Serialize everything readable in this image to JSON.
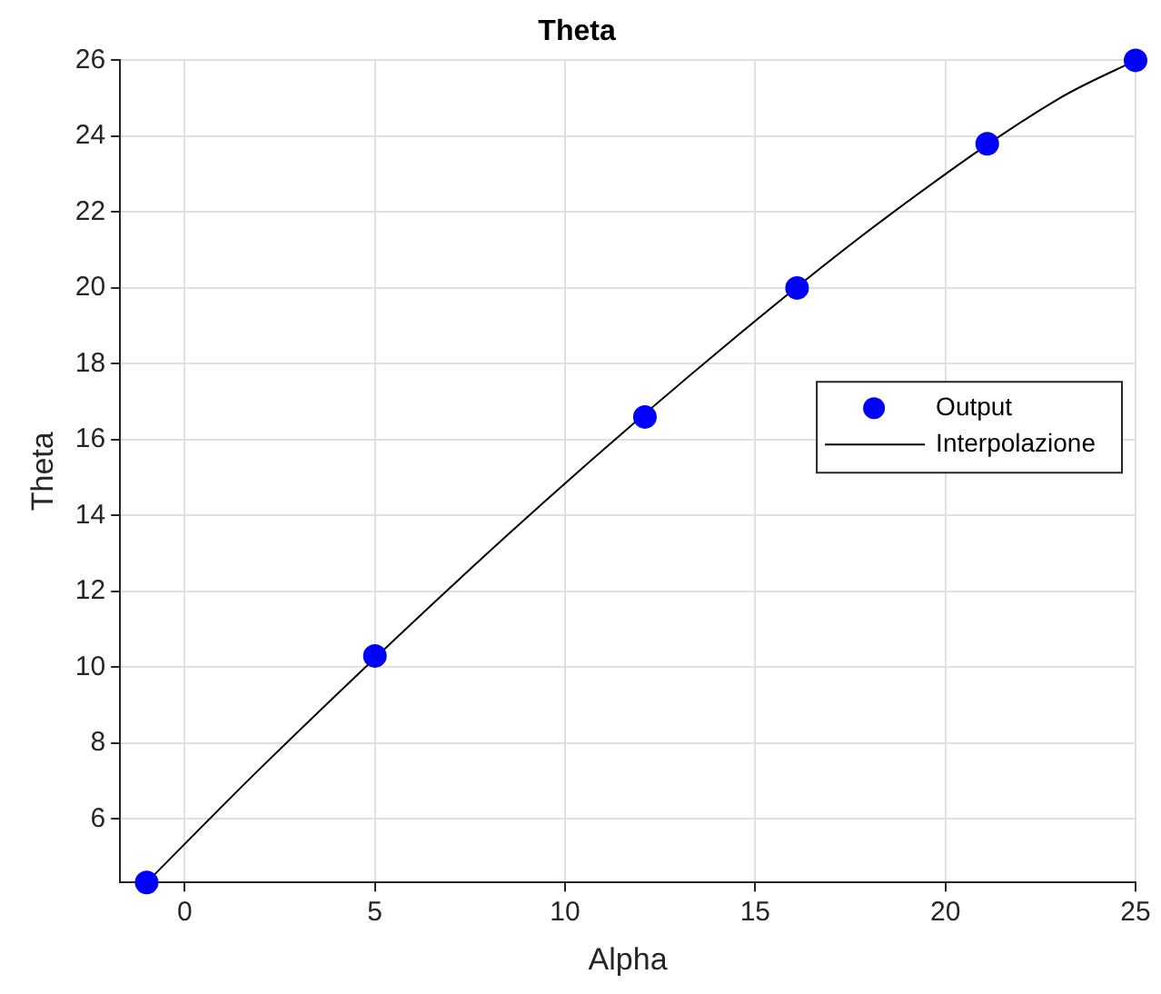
{
  "chart_data": {
    "type": "scatter",
    "title": "Theta",
    "xlabel": "Alpha",
    "ylabel": "Theta",
    "xlim": [
      -1.7,
      25
    ],
    "ylim": [
      4.33,
      26
    ],
    "xticks": [
      0,
      5,
      10,
      15,
      20,
      25
    ],
    "yticks": [
      6,
      8,
      10,
      12,
      14,
      16,
      18,
      20,
      22,
      24,
      26
    ],
    "grid": true,
    "legend": "right",
    "series": [
      {
        "name": "Output",
        "type": "scatter",
        "color": "#0000ff",
        "marker": "circle",
        "x": [
          -1,
          5,
          12.1,
          16.1,
          21.1,
          25
        ],
        "values": [
          4.33,
          10.3,
          16.6,
          20.0,
          23.8,
          26.0
        ]
      },
      {
        "name": "Interpolazione",
        "type": "line",
        "color": "#000000",
        "marker": "none",
        "line_style": "solid",
        "x": [
          -1,
          2,
          8.5,
          14,
          18.5,
          23,
          25
        ],
        "values": [
          4.33,
          7.35,
          13.5,
          18.3,
          21.9,
          25.0,
          26.0
        ]
      }
    ]
  }
}
